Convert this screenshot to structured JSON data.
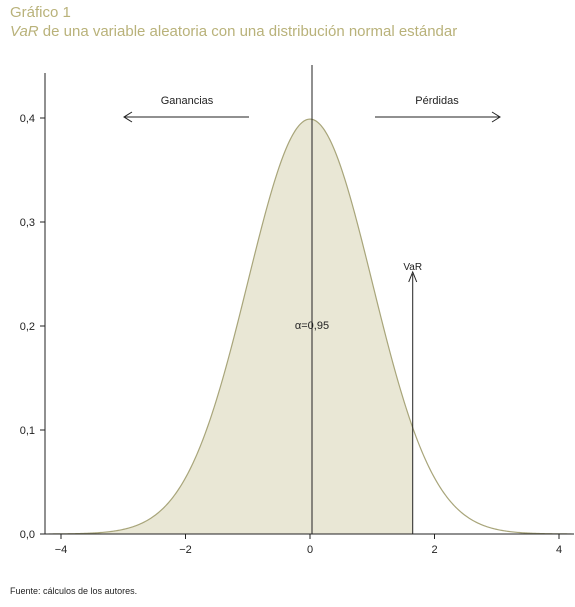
{
  "header": {
    "number": "Gráfico 1",
    "title_italic": "VaR",
    "title_rest": " de una variable aleatoria con una distribución normal estándar"
  },
  "source": "Fuente: cálculos de los autores.",
  "colors": {
    "fill": "#e9e7d5",
    "curve": "#a8a57a",
    "axis": "#222222",
    "title": "#b9b27a"
  },
  "chart_data": {
    "type": "area",
    "title": "VaR de una variable aleatoria con una distribución normal estándar",
    "xlabel": "",
    "ylabel": "",
    "xlim": [
      -4.2,
      4.2
    ],
    "ylim": [
      0,
      0.45
    ],
    "x_ticks": [
      -4,
      -2,
      0,
      2,
      4
    ],
    "x_tick_labels": [
      "−4",
      "−2",
      "0",
      "2",
      "4"
    ],
    "y_ticks": [
      0,
      0.1,
      0.2,
      0.3,
      0.4
    ],
    "y_tick_labels": [
      "0,0",
      "0,1",
      "0,2",
      "0,3",
      "0,4"
    ],
    "series": [
      {
        "distribution": "standard normal density",
        "x": [
          -4,
          -3,
          -2,
          -1,
          0,
          1,
          2,
          3,
          4
        ],
        "y": [
          0.0001,
          0.0044,
          0.054,
          0.242,
          0.399,
          0.242,
          0.054,
          0.0044,
          0.0001
        ],
        "shaded_to_x": 1.65
      }
    ],
    "grid": false,
    "annotations": {
      "gains": "Ganancias",
      "losses": "Pérdidas",
      "alpha": "α=0,95",
      "var": "VaR",
      "var_x": 1.65
    }
  }
}
